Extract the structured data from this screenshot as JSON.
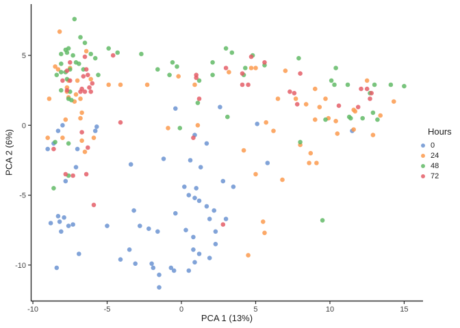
{
  "chart_data": {
    "type": "scatter",
    "title": "",
    "xlabel": "PCA 1 (13%)",
    "ylabel": "PCA 2 (6%)",
    "xlim": [
      -10.14,
      16.27
    ],
    "ylim": [
      -12.55,
      8.67
    ],
    "x_ticks": [
      -10,
      -5,
      0,
      5,
      10,
      15
    ],
    "y_ticks": [
      5,
      0,
      -5,
      -10
    ],
    "grid": false,
    "legend_title": "Hours",
    "legend_position": "right",
    "axis_color": "#2b2b2b",
    "tick_label_color": "#404040",
    "point_radius": 3.3,
    "point_opacity": 0.85,
    "series": [
      {
        "name": "0",
        "color": "#6B93D1",
        "points": [
          [
            -8.0,
            0.0
          ],
          [
            -8.3,
            -0.4
          ],
          [
            -5.7,
            -0.1
          ],
          [
            -5.8,
            -0.4
          ],
          [
            -8.6,
            -1.3
          ],
          [
            -9.0,
            -1.7
          ],
          [
            -7.0,
            -1.7
          ],
          [
            -7.1,
            -3.0
          ],
          [
            -0.4,
            1.2
          ],
          [
            2.6,
            1.3
          ],
          [
            0.9,
            -0.7
          ],
          [
            1.7,
            -1.3
          ],
          [
            5.1,
            0.1
          ],
          [
            11.5,
            -0.4
          ],
          [
            -1.2,
            -2.4
          ],
          [
            0.6,
            -2.5
          ],
          [
            5.8,
            -2.7
          ],
          [
            3.5,
            -4.4
          ],
          [
            -3.4,
            -2.8
          ],
          [
            1.3,
            -3.0
          ],
          [
            -7.8,
            -4.0
          ],
          [
            2.8,
            -4.0
          ],
          [
            0.2,
            -4.4
          ],
          [
            1.0,
            -4.5
          ],
          [
            0.5,
            -5.0
          ],
          [
            0.9,
            -5.2
          ],
          [
            1.2,
            -5.4
          ],
          [
            1.7,
            -5.8
          ],
          [
            2.2,
            -6.1
          ],
          [
            -3.2,
            -6.1
          ],
          [
            -0.4,
            -6.3
          ],
          [
            1.9,
            -6.7
          ],
          [
            3.0,
            -6.7
          ],
          [
            2.3,
            -7.6
          ],
          [
            -8.3,
            -6.5
          ],
          [
            -8.2,
            -6.9
          ],
          [
            -7.9,
            -6.6
          ],
          [
            -8.8,
            -7.0
          ],
          [
            -7.6,
            -7.2
          ],
          [
            -7.3,
            -7.1
          ],
          [
            -8.1,
            -7.6
          ],
          [
            -5.0,
            -7.2
          ],
          [
            -2.8,
            -7.2
          ],
          [
            -2.2,
            -7.4
          ],
          [
            -1.6,
            -7.6
          ],
          [
            0.3,
            -7.5
          ],
          [
            0.8,
            -8.0
          ],
          [
            2.3,
            -8.5
          ],
          [
            0.8,
            -8.9
          ],
          [
            -3.5,
            -8.9
          ],
          [
            -4.1,
            -9.6
          ],
          [
            -3.1,
            -9.9
          ],
          [
            -6.9,
            -9.2
          ],
          [
            -8.4,
            -10.2
          ],
          [
            -2.0,
            -9.9
          ],
          [
            -1.9,
            -10.2
          ],
          [
            -1.5,
            -10.7
          ],
          [
            -0.7,
            -10.2
          ],
          [
            -0.5,
            -10.4
          ],
          [
            0.5,
            -10.4
          ],
          [
            0.9,
            -9.8
          ],
          [
            1.2,
            -9.2
          ],
          [
            1.9,
            -9.5
          ],
          [
            -1.5,
            -11.6
          ]
        ]
      },
      {
        "name": "24",
        "color": "#FB9A4D",
        "points": [
          [
            -8.2,
            6.7
          ],
          [
            -6.4,
            5.3
          ],
          [
            -8.5,
            4.2
          ],
          [
            -8.3,
            4.0
          ],
          [
            -7.5,
            4.1
          ],
          [
            -7.6,
            3.2
          ],
          [
            -7.0,
            3.2
          ],
          [
            -6.1,
            3.3
          ],
          [
            -4.9,
            2.9
          ],
          [
            -7.7,
            2.7
          ],
          [
            -2.3,
            2.9
          ],
          [
            -7.7,
            2.4
          ],
          [
            -7.1,
            2.2
          ],
          [
            -6.8,
            1.9
          ],
          [
            -7.2,
            1.7
          ],
          [
            -8.9,
            1.9
          ],
          [
            -7.6,
            2.0
          ],
          [
            -6.7,
            0.9
          ],
          [
            -6.8,
            0.5
          ],
          [
            -7.8,
            0.4
          ],
          [
            -9.0,
            -0.9
          ],
          [
            -8.0,
            -0.9
          ],
          [
            -6.7,
            -1.1
          ],
          [
            -5.9,
            -0.9
          ],
          [
            -6.5,
            -1.9
          ],
          [
            -4.1,
            2.9
          ],
          [
            -0.9,
            -0.2
          ],
          [
            1.1,
            0.0
          ],
          [
            -0.2,
            3.5
          ],
          [
            0.9,
            2.9
          ],
          [
            3.2,
            3.8
          ],
          [
            4.2,
            -1.8
          ],
          [
            4.7,
            4.1
          ],
          [
            5.0,
            4.1
          ],
          [
            7.0,
            3.9
          ],
          [
            6.5,
            1.9
          ],
          [
            7.7,
            1.9
          ],
          [
            8.4,
            1.5
          ],
          [
            9.7,
            1.9
          ],
          [
            9.0,
            2.6
          ],
          [
            12.5,
            3.2
          ],
          [
            14.3,
            1.7
          ],
          [
            11.6,
            1.1
          ],
          [
            11.7,
            1.0
          ],
          [
            9.3,
            1.3
          ],
          [
            10.4,
            0.3
          ],
          [
            10.5,
            -0.6
          ],
          [
            13.4,
            0.7
          ],
          [
            12.9,
            -0.7
          ],
          [
            9.0,
            0.4
          ],
          [
            9.9,
            0.5
          ],
          [
            5.7,
            0.2
          ],
          [
            6.2,
            -0.4
          ],
          [
            11.6,
            -0.3
          ],
          [
            8.0,
            -1.4
          ],
          [
            8.7,
            -2.0
          ],
          [
            8.6,
            -2.7
          ],
          [
            9.1,
            -2.7
          ],
          [
            5.0,
            -3.5
          ],
          [
            6.8,
            -3.9
          ],
          [
            5.5,
            -6.9
          ],
          [
            5.6,
            -7.7
          ],
          [
            4.5,
            -9.3
          ]
        ]
      },
      {
        "name": "48",
        "color": "#62BA66",
        "points": [
          [
            -7.2,
            7.6
          ],
          [
            -6.8,
            6.3
          ],
          [
            -6.5,
            5.9
          ],
          [
            -7.8,
            5.4
          ],
          [
            -7.6,
            5.5
          ],
          [
            -4.9,
            5.5
          ],
          [
            -4.3,
            5.2
          ],
          [
            -7.3,
            5.0
          ],
          [
            -6.1,
            5.1
          ],
          [
            -5.8,
            4.8
          ],
          [
            -7.1,
            4.5
          ],
          [
            -6.9,
            4.4
          ],
          [
            -6.6,
            4.0
          ],
          [
            -8.1,
            3.8
          ],
          [
            -7.8,
            3.8
          ],
          [
            -5.6,
            3.6
          ],
          [
            -8.1,
            5.1
          ],
          [
            -7.7,
            5.2
          ],
          [
            -8.1,
            4.4
          ],
          [
            -7.5,
            4.0
          ],
          [
            -8.4,
            3.6
          ],
          [
            -7.7,
            3.3
          ],
          [
            -8.1,
            2.5
          ],
          [
            -7.5,
            2.4
          ],
          [
            -7.6,
            1.9
          ],
          [
            -7.4,
            1.8
          ],
          [
            -8.5,
            -1.2
          ],
          [
            -7.6,
            -1.3
          ],
          [
            -2.7,
            5.1
          ],
          [
            -1.6,
            4.0
          ],
          [
            -0.6,
            4.5
          ],
          [
            -0.3,
            4.2
          ],
          [
            -0.8,
            3.6
          ],
          [
            2.1,
            4.5
          ],
          [
            2.1,
            3.6
          ],
          [
            1.2,
            3.2
          ],
          [
            3.0,
            5.5
          ],
          [
            -0.1,
            -0.2
          ],
          [
            1.1,
            1.6
          ],
          [
            3.1,
            0.6
          ],
          [
            -8.6,
            -4.5
          ],
          [
            -7.6,
            -3.6
          ],
          [
            9.5,
            -6.8
          ],
          [
            3.4,
            5.2
          ],
          [
            4.8,
            5.0
          ],
          [
            5.6,
            4.3
          ],
          [
            4.3,
            4.1
          ],
          [
            7.9,
            4.8
          ],
          [
            4.2,
            3.6
          ],
          [
            10.4,
            4.1
          ],
          [
            10.1,
            3.2
          ],
          [
            10.3,
            2.9
          ],
          [
            11.2,
            2.9
          ],
          [
            13.0,
            2.9
          ],
          [
            12.7,
            2.3
          ],
          [
            14.1,
            2.9
          ],
          [
            15.0,
            2.8
          ],
          [
            12.9,
            0.9
          ],
          [
            13.2,
            0.4
          ],
          [
            11.3,
            0.6
          ],
          [
            11.4,
            0.5
          ],
          [
            12.2,
            0.5
          ],
          [
            9.7,
            0.4
          ],
          [
            8.0,
            -1.2
          ]
        ]
      },
      {
        "name": "72",
        "color": "#E45E67",
        "points": [
          [
            -4.6,
            5.0
          ],
          [
            -6.5,
            4.9
          ],
          [
            -7.5,
            4.5
          ],
          [
            -6.4,
            4.0
          ],
          [
            -8.0,
            3.2
          ],
          [
            -6.6,
            3.5
          ],
          [
            -6.3,
            3.6
          ],
          [
            -6.0,
            3.0
          ],
          [
            -6.2,
            2.7
          ],
          [
            -6.7,
            2.6
          ],
          [
            -7.7,
            3.9
          ],
          [
            -7.5,
            3.2
          ],
          [
            -7.7,
            2.5
          ],
          [
            -6.8,
            2.4
          ],
          [
            -6.5,
            2.4
          ],
          [
            -6.1,
            2.4
          ],
          [
            -6.7,
            -0.5
          ],
          [
            -8.6,
            -1.7
          ],
          [
            -6.3,
            -1.6
          ],
          [
            -4.1,
            0.2
          ],
          [
            -7.8,
            -3.5
          ],
          [
            -7.3,
            -3.6
          ],
          [
            -6.4,
            -3.5
          ],
          [
            -5.9,
            -5.7
          ],
          [
            2.8,
            -7.1
          ],
          [
            0.8,
            -0.9
          ],
          [
            4.1,
            3.7
          ],
          [
            4.1,
            2.9
          ],
          [
            4.5,
            2.9
          ],
          [
            4.7,
            4.9
          ],
          [
            5.6,
            4.5
          ],
          [
            8.0,
            3.7
          ],
          [
            7.3,
            2.4
          ],
          [
            7.6,
            2.3
          ],
          [
            7.8,
            1.5
          ],
          [
            12.1,
            2.6
          ],
          [
            12.5,
            2.6
          ],
          [
            12.8,
            2.3
          ],
          [
            12.7,
            1.9
          ],
          [
            10.6,
            1.4
          ],
          [
            11.9,
            1.3
          ],
          [
            1.0,
            3.6
          ],
          [
            1.0,
            3.4
          ],
          [
            1.2,
            1.9
          ],
          [
            3.0,
            4.1
          ]
        ]
      }
    ]
  }
}
